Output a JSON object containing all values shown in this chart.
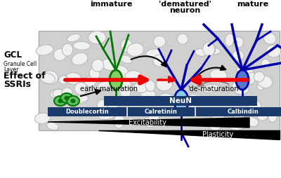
{
  "bg_color": "#ffffff",
  "gcl_bg": "#d0d0d0",
  "gcl_label1": "GCL",
  "gcl_label2": "Granule Cell",
  "gcl_label3": "Layer",
  "immature_label": "immature",
  "dematured_label1": "'dematured'",
  "dematured_label2": "neuron",
  "mature_label": "mature",
  "effect_label1": "Effect of",
  "effect_label2": "SSRIs",
  "early_mat_label": "early maturation",
  "demat_label": "'de-maturation'",
  "neun_label": "NeuN",
  "doublecortin_label": "Doublecortin",
  "calretinin_label": "Calretinin",
  "calbindin_label": "Calbindin",
  "excitability_label": "Excitability",
  "plasticity_label": "Plasticity",
  "green_color": "#007700",
  "light_green": "#88cc88",
  "blue_dark": "#0000aa",
  "light_blue": "#88aaff",
  "sky_blue": "#aaddff",
  "red_color": "#ee0000",
  "dark_blue_bar": "#1a3a6b",
  "black": "#000000",
  "gray": "#888888",
  "stone_fill": "#f0f0f0",
  "stone_edge": "#bbbbbb"
}
